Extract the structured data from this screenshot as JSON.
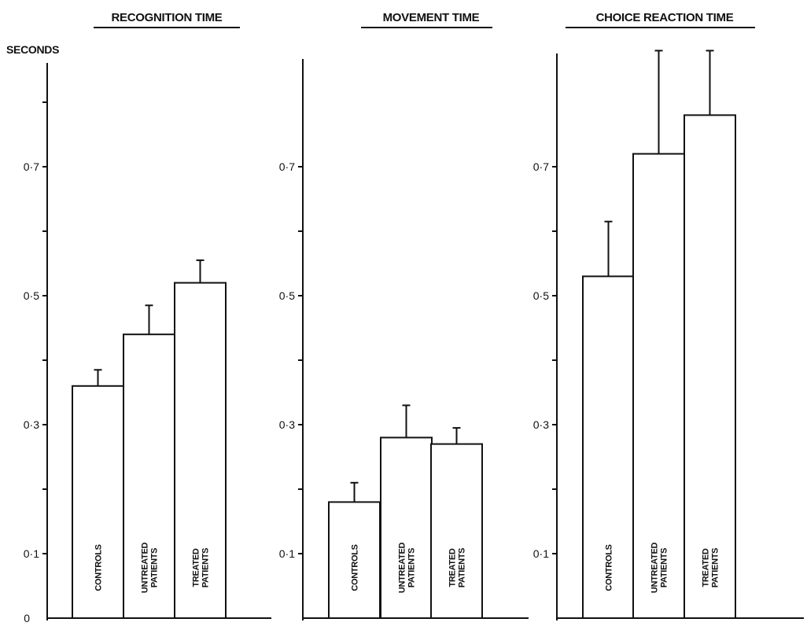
{
  "chart_data": [
    {
      "type": "bar",
      "title": "RECOGNITION TIME",
      "ylabel": "SECONDS",
      "ylim": [
        0,
        0.85
      ],
      "yticks": [
        {
          "value": 0.1,
          "label": "0·1"
        },
        {
          "value": 0.3,
          "label": "0·3"
        },
        {
          "value": 0.5,
          "label": "0·5"
        },
        {
          "value": 0.7,
          "label": "0·7"
        }
      ],
      "ytick_minor": [
        0.2,
        0.4,
        0.6,
        0.8
      ],
      "zero_label": "0",
      "categories": [
        "CONTROLS",
        "UNTREATED PATIENTS",
        "TREATED PATIENTS"
      ],
      "values": [
        0.36,
        0.44,
        0.52
      ],
      "error_upper": [
        0.385,
        0.485,
        0.555
      ]
    },
    {
      "type": "bar",
      "title": "MOVEMENT TIME",
      "ylabel": "",
      "ylim": [
        0,
        0.85
      ],
      "yticks": [
        {
          "value": 0.1,
          "label": "0·1"
        },
        {
          "value": 0.3,
          "label": "0·3"
        },
        {
          "value": 0.5,
          "label": "0·5"
        },
        {
          "value": 0.7,
          "label": "0·7"
        }
      ],
      "ytick_minor": [
        0.2,
        0.4,
        0.6
      ],
      "zero_label": "",
      "categories": [
        "CONTROLS",
        "UNTREATED PATIENTS",
        "TREATED PATIENTS"
      ],
      "values": [
        0.18,
        0.28,
        0.27
      ],
      "error_upper": [
        0.21,
        0.33,
        0.295
      ]
    },
    {
      "type": "bar",
      "title": "CHOICE REACTION TIME",
      "ylabel": "",
      "ylim": [
        0,
        0.85
      ],
      "yticks": [
        {
          "value": 0.1,
          "label": "0·1"
        },
        {
          "value": 0.3,
          "label": "0·3"
        },
        {
          "value": 0.5,
          "label": "0·5"
        },
        {
          "value": 0.7,
          "label": "0·7"
        }
      ],
      "ytick_minor": [
        0.2,
        0.4,
        0.6
      ],
      "zero_label": "",
      "categories": [
        "CONTROLS",
        "UNTREATED PATIENTS",
        "TREATED PATIENTS"
      ],
      "values": [
        0.53,
        0.72,
        0.78
      ],
      "error_upper": [
        0.615,
        0.88,
        0.88
      ]
    }
  ]
}
